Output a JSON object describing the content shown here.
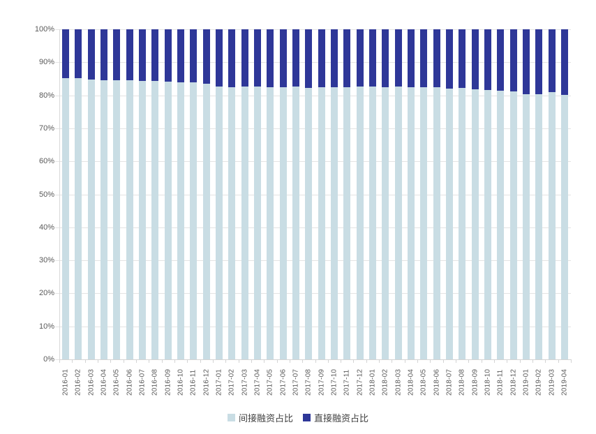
{
  "chart_data": {
    "type": "bar",
    "stacked": true,
    "stack_mode": "percent",
    "title": "",
    "xlabel": "",
    "ylabel": "",
    "ylim": [
      0,
      100
    ],
    "grid": "horizontal",
    "legend_position": "bottom",
    "y_ticks": [
      "0%",
      "10%",
      "20%",
      "30%",
      "40%",
      "50%",
      "60%",
      "70%",
      "80%",
      "90%",
      "100%"
    ],
    "categories": [
      "2016-01",
      "2016-02",
      "2016-03",
      "2016-04",
      "2016-05",
      "2016-06",
      "2016-07",
      "2016-08",
      "2016-09",
      "2016-10",
      "2016-11",
      "2016-12",
      "2017-01",
      "2017-02",
      "2017-03",
      "2017-04",
      "2017-05",
      "2017-06",
      "2017-07",
      "2017-08",
      "2017-09",
      "2017-10",
      "2017-11",
      "2017-12",
      "2018-01",
      "2018-02",
      "2018-03",
      "2018-04",
      "2018-05",
      "2018-06",
      "2018-07",
      "2018-08",
      "2018-09",
      "2018-10",
      "2018-11",
      "2018-12",
      "2019-01",
      "2019-02",
      "2019-03",
      "2019-04"
    ],
    "series": [
      {
        "name": "间接融资占比",
        "color": "#c9dde4",
        "values": [
          85.3,
          85.2,
          84.7,
          84.5,
          84.6,
          84.5,
          84.4,
          84.3,
          84.1,
          83.9,
          83.9,
          83.6,
          82.6,
          82.4,
          82.6,
          82.6,
          82.4,
          82.4,
          82.6,
          82.3,
          82.5,
          82.4,
          82.4,
          82.7,
          82.6,
          82.4,
          82.6,
          82.5,
          82.4,
          82.4,
          82.1,
          82.2,
          81.8,
          81.7,
          81.5,
          81.2,
          80.4,
          80.3,
          81.0,
          80.1
        ]
      },
      {
        "name": "直接融资占比",
        "color": "#2e3798",
        "values": [
          14.7,
          14.8,
          15.3,
          15.5,
          15.4,
          15.5,
          15.6,
          15.7,
          15.9,
          16.1,
          16.1,
          16.4,
          17.4,
          17.6,
          17.4,
          17.4,
          17.6,
          17.6,
          17.4,
          17.7,
          17.5,
          17.6,
          17.6,
          17.3,
          17.4,
          17.6,
          17.4,
          17.5,
          17.6,
          17.6,
          17.9,
          17.8,
          18.2,
          18.3,
          18.5,
          18.8,
          19.6,
          19.7,
          19.0,
          19.9
        ]
      }
    ]
  },
  "colors": {
    "background": "#ffffff",
    "gridline": "#e3e3e3",
    "axis_line": "#d4d4d4",
    "tick_label": "#595959",
    "legend_text": "#404040"
  }
}
